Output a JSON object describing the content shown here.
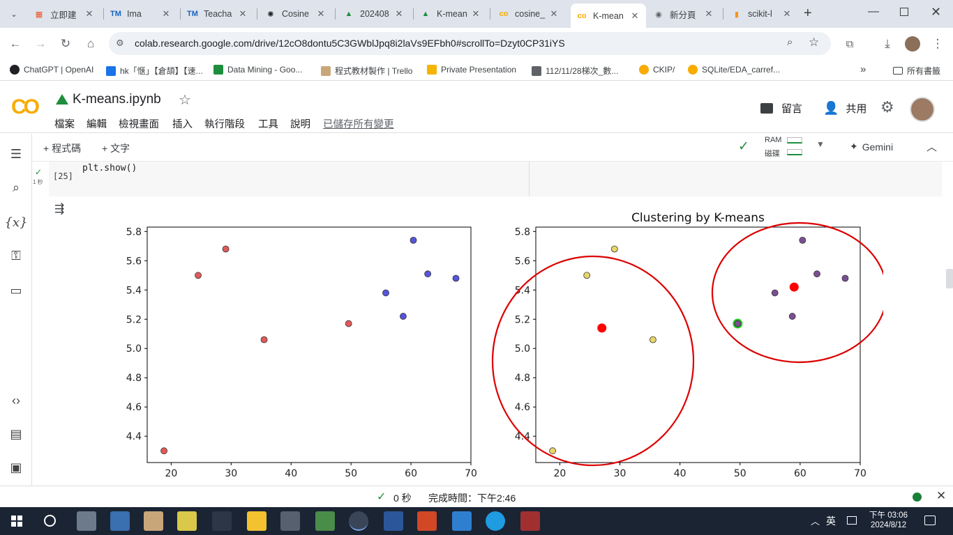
{
  "browser": {
    "tabs": [
      {
        "label": "立即建",
        "icon": "windows-logo-icon",
        "color": "#f25022"
      },
      {
        "label": "Ima",
        "icon": "tm-icon",
        "color": "#1565c0"
      },
      {
        "label": "Teacha",
        "icon": "tm-icon",
        "color": "#1565c0"
      },
      {
        "label": "Cosine",
        "icon": "openai-icon",
        "color": "#202124"
      },
      {
        "label": "202408",
        "icon": "drive-icon",
        "color": "#1e8e3e"
      },
      {
        "label": "K-mean",
        "icon": "drive-icon",
        "color": "#1e8e3e"
      },
      {
        "label": "cosine_",
        "icon": "colab-icon",
        "color": "#f9ab00"
      },
      {
        "label": "K-mean",
        "icon": "colab-icon",
        "color": "#f9ab00"
      },
      {
        "label": "新分頁",
        "icon": "chrome-icon",
        "color": "#5f6368"
      },
      {
        "label": "scikit-l",
        "icon": "sklearn-icon",
        "color": "#f7931e"
      }
    ],
    "new_tab": "+",
    "url": "colab.research.google.com/drive/12cO8dontu5C3GWblJpq8i2laVs9EFbh0#scrollTo=Dzyt0CP31iYS",
    "bookmarks": [
      {
        "label": "ChatGPT | OpenAI",
        "icon": "openai-icon"
      },
      {
        "label": "hk「惬」【倉頡】【速...",
        "icon": "hk-icon"
      },
      {
        "label": "Data Mining - Goo...",
        "icon": "drive-icon"
      },
      {
        "label": "程式教材製作 | Trello",
        "icon": "trello-icon"
      },
      {
        "label": "Private Presentation",
        "icon": "slides-icon"
      },
      {
        "label": "112/11/28梯次_數...",
        "icon": "doc-icon"
      },
      {
        "label": "CKIP/",
        "icon": "colab-icon"
      },
      {
        "label": "SQLite/EDA_carref...",
        "icon": "colab-icon"
      }
    ],
    "bookmarks_more": "»",
    "all_bookmarks": "所有書籤"
  },
  "colab": {
    "logo": "CO",
    "title": "K-means.ipynb",
    "menu": [
      "檔案",
      "編輯",
      "檢視畫面",
      "插入",
      "執行階段",
      "工具",
      "說明"
    ],
    "saved": "已儲存所有變更",
    "comment": "留言",
    "share": "共用",
    "add_code": "+ 程式碼",
    "add_text": "+ 文字",
    "ram": "RAM",
    "disk": "磁碟",
    "gemini": "Gemini",
    "cell_exec": "[25]",
    "cell_time": "1 秒",
    "cell_code": "plt.show()"
  },
  "status": {
    "elapsed": "0 秒",
    "completed": "完成時間：下午2:46"
  },
  "taskbar": {
    "ime": "英",
    "time": "下午 03:06",
    "date": "2024/8/12"
  },
  "chart_data": [
    {
      "type": "scatter",
      "title": "",
      "xlim": [
        16,
        70
      ],
      "ylim": [
        4.22,
        5.83
      ],
      "xticks": [
        20,
        30,
        40,
        50,
        60,
        70
      ],
      "yticks": [
        4.4,
        4.6,
        4.8,
        5.0,
        5.2,
        5.4,
        5.6,
        5.8
      ],
      "points": [
        {
          "x": 18.8,
          "y": 4.3,
          "color": "#e05a5a"
        },
        {
          "x": 24.5,
          "y": 5.5,
          "color": "#e05a5a"
        },
        {
          "x": 29.1,
          "y": 5.68,
          "color": "#e05a5a"
        },
        {
          "x": 35.5,
          "y": 5.06,
          "color": "#e05a5a"
        },
        {
          "x": 49.6,
          "y": 5.17,
          "color": "#e05a5a"
        },
        {
          "x": 55.8,
          "y": 5.38,
          "color": "#5555dd"
        },
        {
          "x": 58.7,
          "y": 5.22,
          "color": "#5555dd"
        },
        {
          "x": 60.4,
          "y": 5.74,
          "color": "#5555dd"
        },
        {
          "x": 62.8,
          "y": 5.51,
          "color": "#5555dd"
        },
        {
          "x": 67.5,
          "y": 5.48,
          "color": "#5555dd"
        }
      ]
    },
    {
      "type": "scatter",
      "title": "Clustering by K-means",
      "xlim": [
        16,
        70
      ],
      "ylim": [
        4.22,
        5.83
      ],
      "xticks": [
        20,
        30,
        40,
        50,
        60,
        70
      ],
      "yticks": [
        4.4,
        4.6,
        4.8,
        5.0,
        5.2,
        5.4,
        5.6,
        5.8
      ],
      "points": [
        {
          "x": 18.8,
          "y": 4.3,
          "color": "#e8d56c"
        },
        {
          "x": 24.5,
          "y": 5.5,
          "color": "#e8d56c"
        },
        {
          "x": 29.1,
          "y": 5.68,
          "color": "#e8d56c"
        },
        {
          "x": 35.5,
          "y": 5.06,
          "color": "#e8d56c"
        },
        {
          "x": 49.6,
          "y": 5.17,
          "color": "#7a4f93",
          "ring": "#22cc22"
        },
        {
          "x": 55.8,
          "y": 5.38,
          "color": "#7a4f93"
        },
        {
          "x": 58.7,
          "y": 5.22,
          "color": "#7a4f93"
        },
        {
          "x": 60.4,
          "y": 5.74,
          "color": "#7a4f93"
        },
        {
          "x": 62.8,
          "y": 5.51,
          "color": "#7a4f93"
        },
        {
          "x": 67.5,
          "y": 5.48,
          "color": "#7a4f93"
        }
      ],
      "centroids": [
        {
          "x": 27.0,
          "y": 5.14,
          "color": "#ff0000"
        },
        {
          "x": 59.0,
          "y": 5.42,
          "color": "#ff0000"
        }
      ]
    }
  ]
}
